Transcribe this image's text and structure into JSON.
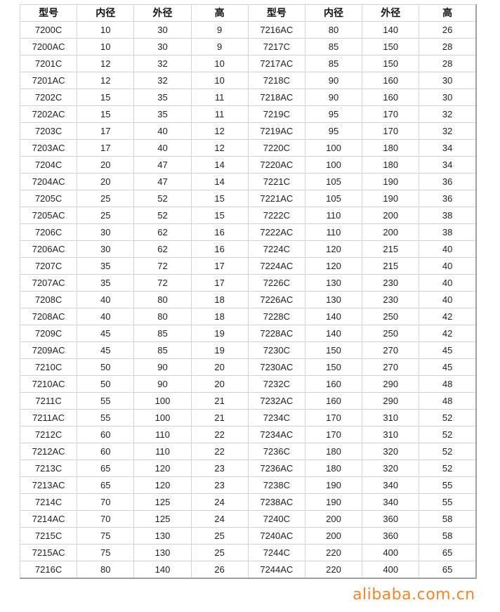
{
  "headers": [
    "型号",
    "内径",
    "外径",
    "高",
    "型号",
    "内径",
    "外径",
    "高"
  ],
  "rows": [
    [
      "7200C",
      "10",
      "30",
      "9",
      "7216AC",
      "80",
      "140",
      "26"
    ],
    [
      "7200AC",
      "10",
      "30",
      "9",
      "7217C",
      "85",
      "150",
      "28"
    ],
    [
      "7201C",
      "12",
      "32",
      "10",
      "7217AC",
      "85",
      "150",
      "28"
    ],
    [
      "7201AC",
      "12",
      "32",
      "10",
      "7218C",
      "90",
      "160",
      "30"
    ],
    [
      "7202C",
      "15",
      "35",
      "11",
      "7218AC",
      "90",
      "160",
      "30"
    ],
    [
      "7202AC",
      "15",
      "35",
      "11",
      "7219C",
      "95",
      "170",
      "32"
    ],
    [
      "7203C",
      "17",
      "40",
      "12",
      "7219AC",
      "95",
      "170",
      "32"
    ],
    [
      "7203AC",
      "17",
      "40",
      "12",
      "7220C",
      "100",
      "180",
      "34"
    ],
    [
      "7204C",
      "20",
      "47",
      "14",
      "7220AC",
      "100",
      "180",
      "34"
    ],
    [
      "7204AC",
      "20",
      "47",
      "14",
      "7221C",
      "105",
      "190",
      "36"
    ],
    [
      "7205C",
      "25",
      "52",
      "15",
      "7221AC",
      "105",
      "190",
      "36"
    ],
    [
      "7205AC",
      "25",
      "52",
      "15",
      "7222C",
      "110",
      "200",
      "38"
    ],
    [
      "7206C",
      "30",
      "62",
      "16",
      "7222AC",
      "110",
      "200",
      "38"
    ],
    [
      "7206AC",
      "30",
      "62",
      "16",
      "7224C",
      "120",
      "215",
      "40"
    ],
    [
      "7207C",
      "35",
      "72",
      "17",
      "7224AC",
      "120",
      "215",
      "40"
    ],
    [
      "7207AC",
      "35",
      "72",
      "17",
      "7226C",
      "130",
      "230",
      "40"
    ],
    [
      "7208C",
      "40",
      "80",
      "18",
      "7226AC",
      "130",
      "230",
      "40"
    ],
    [
      "7208AC",
      "40",
      "80",
      "18",
      "7228C",
      "140",
      "250",
      "42"
    ],
    [
      "7209C",
      "45",
      "85",
      "19",
      "7228AC",
      "140",
      "250",
      "42"
    ],
    [
      "7209AC",
      "45",
      "85",
      "19",
      "7230C",
      "150",
      "270",
      "45"
    ],
    [
      "7210C",
      "50",
      "90",
      "20",
      "7230AC",
      "150",
      "270",
      "45"
    ],
    [
      "7210AC",
      "50",
      "90",
      "20",
      "7232C",
      "160",
      "290",
      "48"
    ],
    [
      "7211C",
      "55",
      "100",
      "21",
      "7232AC",
      "160",
      "290",
      "48"
    ],
    [
      "7211AC",
      "55",
      "100",
      "21",
      "7234C",
      "170",
      "310",
      "52"
    ],
    [
      "7212C",
      "60",
      "110",
      "22",
      "7234AC",
      "170",
      "310",
      "52"
    ],
    [
      "7212AC",
      "60",
      "110",
      "22",
      "7236C",
      "180",
      "320",
      "52"
    ],
    [
      "7213C",
      "65",
      "120",
      "23",
      "7236AC",
      "180",
      "320",
      "52"
    ],
    [
      "7213AC",
      "65",
      "120",
      "23",
      "7238C",
      "190",
      "340",
      "55"
    ],
    [
      "7214C",
      "70",
      "125",
      "24",
      "7238AC",
      "190",
      "340",
      "55"
    ],
    [
      "7214AC",
      "70",
      "125",
      "24",
      "7240C",
      "200",
      "360",
      "58"
    ],
    [
      "7215C",
      "75",
      "130",
      "25",
      "7240AC",
      "200",
      "360",
      "58"
    ],
    [
      "7215AC",
      "75",
      "130",
      "25",
      "7244C",
      "220",
      "400",
      "65"
    ],
    [
      "7216C",
      "80",
      "140",
      "26",
      "7244AC",
      "220",
      "400",
      "65"
    ]
  ],
  "watermark": "alibaba.com.cn",
  "colors": {
    "watermark": "#f07a1a",
    "grid": "#d4d4d4"
  }
}
